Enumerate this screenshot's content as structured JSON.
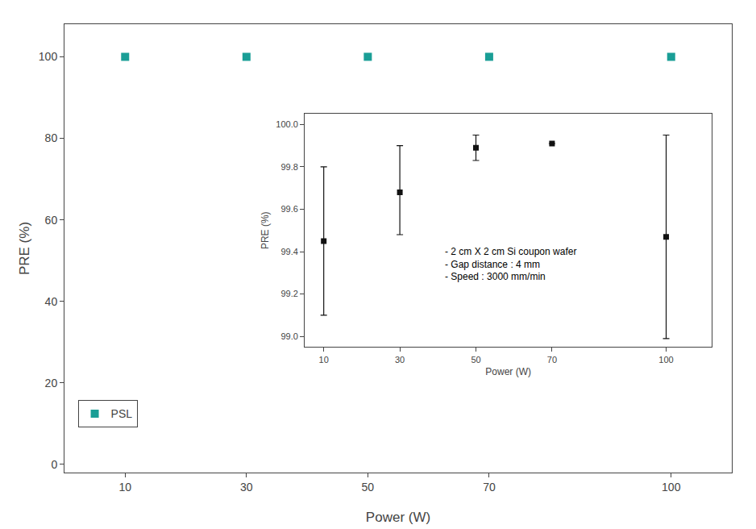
{
  "chart_data": [
    {
      "type": "scatter",
      "x": [
        10,
        30,
        50,
        70,
        100
      ],
      "series": [
        {
          "name": "PSL",
          "color": "#1a9e96",
          "marker": "square",
          "values": [
            99.99,
            99.99,
            100.0,
            100.0,
            99.99
          ]
        }
      ],
      "xlim": [
        0,
        110
      ],
      "ylim": [
        -2,
        108
      ],
      "xticks": [
        10,
        30,
        50,
        70,
        100
      ],
      "yticks": [
        0,
        20,
        40,
        60,
        80,
        100
      ],
      "xlabel": "Power (W)",
      "ylabel": "PRE (%)",
      "legend": "lower left",
      "grid": false
    },
    {
      "type": "scatter",
      "x": [
        10,
        30,
        50,
        70,
        100
      ],
      "series": [
        {
          "color": "#111111",
          "marker": "square",
          "values": [
            99.45,
            99.68,
            99.89,
            99.91,
            99.47
          ],
          "error_low": [
            0.35,
            0.2,
            0.06,
            0.0,
            0.48
          ],
          "error_high": [
            0.35,
            0.22,
            0.06,
            0.0,
            0.48
          ]
        }
      ],
      "xlim": [
        5,
        112
      ],
      "ylim": [
        98.95,
        100.05
      ],
      "xticks": [
        10,
        30,
        50,
        70,
        100
      ],
      "yticks": [
        {
          "value": 99.0,
          "label": "99.0"
        },
        99.2,
        99.4,
        99.6,
        99.8,
        {
          "value": 100.0,
          "label": "100.0"
        }
      ],
      "xlabel": "Power (W)",
      "ylabel": "PRE (%)",
      "annotations": [
        "- 2 cm X 2 cm Si coupon wafer",
        "- Gap distance : 4 mm",
        "- Speed : 3000 mm/min"
      ],
      "grid": false
    }
  ]
}
